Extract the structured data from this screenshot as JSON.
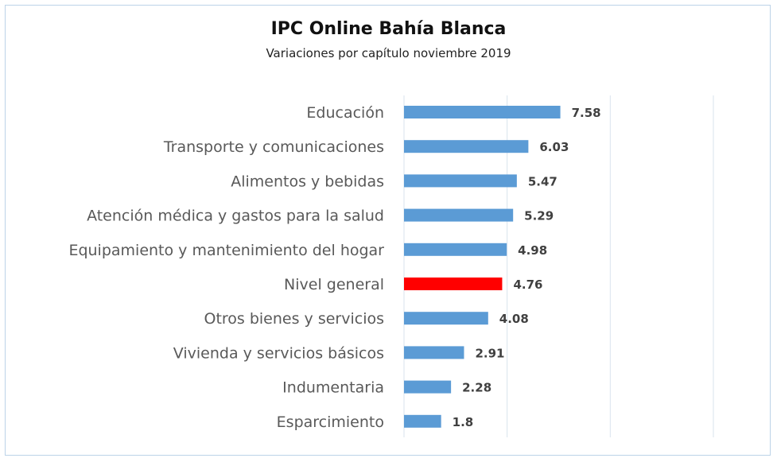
{
  "chart_data": {
    "type": "bar",
    "orientation": "horizontal",
    "title": "IPC Online Bahía Blanca",
    "subtitle": "Variaciones por capítulo noviembre 2019",
    "categories": [
      "Educación",
      "Transporte y comunicaciones",
      "Alimentos y bebidas",
      "Atención médica y gastos para la salud",
      "Equipamiento y mantenimiento del hogar",
      "Nivel general",
      "Otros bienes y servicios",
      "Vivienda y servicios básicos",
      "Indumentaria",
      "Esparcimiento"
    ],
    "values": [
      7.58,
      6.03,
      5.47,
      5.29,
      4.98,
      4.76,
      4.08,
      2.91,
      2.28,
      1.8
    ],
    "value_labels": [
      "7.58",
      "6.03",
      "5.47",
      "5.29",
      "4.98",
      "4.76",
      "4.08",
      "2.91",
      "2.28",
      "1.8"
    ],
    "xlim": [
      0,
      15
    ],
    "gridlines": [
      0,
      5,
      10,
      15
    ],
    "grid": true,
    "legend": false,
    "colors": {
      "bar": "#5b9bd5",
      "highlight": "#ff0000",
      "highlight_category": "Nivel general",
      "grid": "#d9e3ee"
    }
  }
}
